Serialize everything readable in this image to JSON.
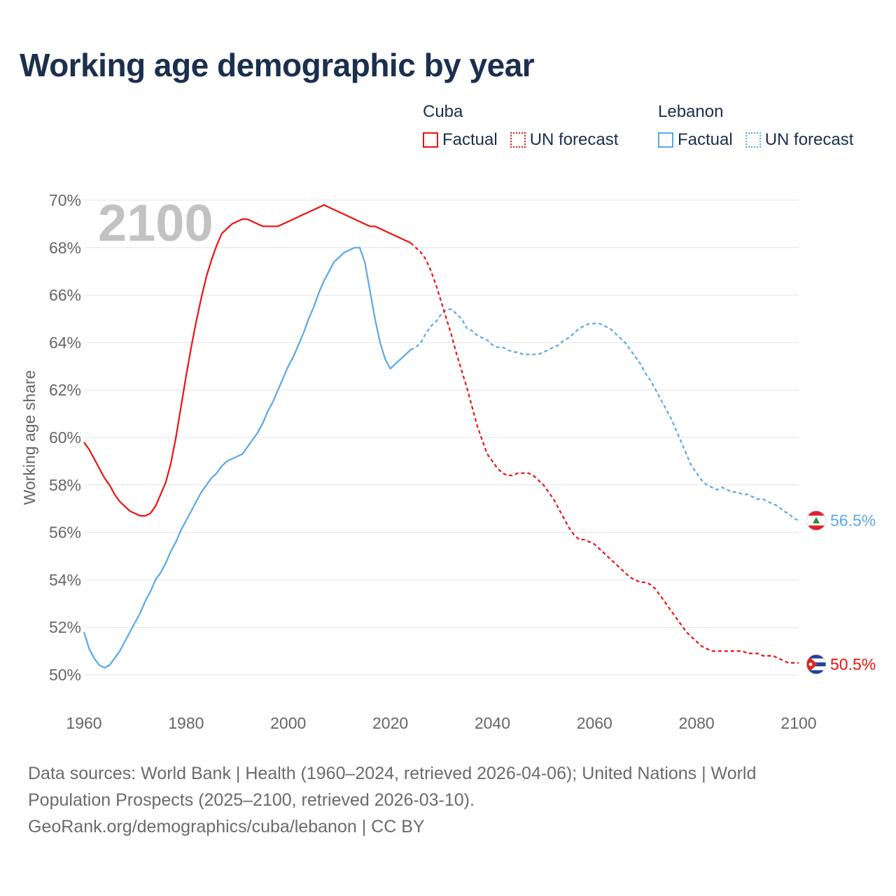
{
  "title": "Working age demographic by year",
  "legend": {
    "groups": [
      {
        "country": "Cuba",
        "color": "#ee1111",
        "factual_label": "Factual",
        "forecast_label": "UN forecast"
      },
      {
        "country": "Lebanon",
        "color": "#5ba8e6",
        "factual_label": "Factual",
        "forecast_label": "UN forecast"
      }
    ]
  },
  "source": {
    "line1": "Data sources: World Bank | Health (1960–2024, retrieved 2026-04-06); United Nations | World Population Prospects (2025–2100, retrieved 2026-03-10).",
    "line2": "GeoRank.org/demographics/cuba/lebanon | CC BY"
  },
  "chart_data": {
    "type": "line",
    "title": "Working age demographic by year",
    "ylabel": "Working age share",
    "xlabel": "",
    "year_watermark": "2100",
    "xlim": [
      1960,
      2100
    ],
    "ylim": [
      50,
      70
    ],
    "x_ticks": [
      1960,
      1980,
      2000,
      2020,
      2040,
      2060,
      2080,
      2100
    ],
    "y_ticks": [
      50,
      52,
      54,
      56,
      58,
      60,
      62,
      64,
      66,
      68,
      70
    ],
    "y_tick_suffix": "%",
    "grid": true,
    "series": [
      {
        "name": "Cuba",
        "color": "#ee1111",
        "flag": "cuba-flag-icon",
        "end_label": "50.5%",
        "factual": [
          [
            1960,
            59.8
          ],
          [
            1961,
            59.5
          ],
          [
            1962,
            59.1
          ],
          [
            1963,
            58.7
          ],
          [
            1964,
            58.3
          ],
          [
            1965,
            58.0
          ],
          [
            1966,
            57.6
          ],
          [
            1967,
            57.3
          ],
          [
            1968,
            57.1
          ],
          [
            1969,
            56.9
          ],
          [
            1970,
            56.8
          ],
          [
            1971,
            56.7
          ],
          [
            1972,
            56.7
          ],
          [
            1973,
            56.8
          ],
          [
            1974,
            57.1
          ],
          [
            1975,
            57.6
          ],
          [
            1976,
            58.1
          ],
          [
            1977,
            58.9
          ],
          [
            1978,
            60.0
          ],
          [
            1979,
            61.3
          ],
          [
            1980,
            62.6
          ],
          [
            1981,
            63.8
          ],
          [
            1982,
            64.9
          ],
          [
            1983,
            65.9
          ],
          [
            1984,
            66.8
          ],
          [
            1985,
            67.5
          ],
          [
            1986,
            68.1
          ],
          [
            1987,
            68.6
          ],
          [
            1988,
            68.8
          ],
          [
            1989,
            69.0
          ],
          [
            1990,
            69.1
          ],
          [
            1991,
            69.2
          ],
          [
            1992,
            69.2
          ],
          [
            1993,
            69.1
          ],
          [
            1994,
            69.0
          ],
          [
            1995,
            68.9
          ],
          [
            1996,
            68.9
          ],
          [
            1997,
            68.9
          ],
          [
            1998,
            68.9
          ],
          [
            1999,
            69.0
          ],
          [
            2000,
            69.1
          ],
          [
            2001,
            69.2
          ],
          [
            2002,
            69.3
          ],
          [
            2003,
            69.4
          ],
          [
            2004,
            69.5
          ],
          [
            2005,
            69.6
          ],
          [
            2006,
            69.7
          ],
          [
            2007,
            69.8
          ],
          [
            2008,
            69.7
          ],
          [
            2009,
            69.6
          ],
          [
            2010,
            69.5
          ],
          [
            2011,
            69.4
          ],
          [
            2012,
            69.3
          ],
          [
            2013,
            69.2
          ],
          [
            2014,
            69.1
          ],
          [
            2015,
            69.0
          ],
          [
            2016,
            68.9
          ],
          [
            2017,
            68.9
          ],
          [
            2018,
            68.8
          ],
          [
            2019,
            68.7
          ],
          [
            2020,
            68.6
          ],
          [
            2021,
            68.5
          ],
          [
            2022,
            68.4
          ],
          [
            2023,
            68.3
          ],
          [
            2024,
            68.2
          ]
        ],
        "forecast": [
          [
            2024,
            68.2
          ],
          [
            2025,
            68.0
          ],
          [
            2026,
            67.8
          ],
          [
            2027,
            67.5
          ],
          [
            2028,
            67.0
          ],
          [
            2029,
            66.4
          ],
          [
            2030,
            65.7
          ],
          [
            2031,
            65.0
          ],
          [
            2032,
            64.3
          ],
          [
            2033,
            63.5
          ],
          [
            2034,
            62.8
          ],
          [
            2035,
            62.1
          ],
          [
            2036,
            61.3
          ],
          [
            2037,
            60.5
          ],
          [
            2038,
            59.9
          ],
          [
            2039,
            59.3
          ],
          [
            2040,
            59.0
          ],
          [
            2041,
            58.7
          ],
          [
            2042,
            58.5
          ],
          [
            2043,
            58.4
          ],
          [
            2044,
            58.4
          ],
          [
            2045,
            58.5
          ],
          [
            2046,
            58.5
          ],
          [
            2047,
            58.5
          ],
          [
            2048,
            58.4
          ],
          [
            2049,
            58.2
          ],
          [
            2050,
            58.0
          ],
          [
            2051,
            57.7
          ],
          [
            2052,
            57.4
          ],
          [
            2053,
            57.0
          ],
          [
            2054,
            56.6
          ],
          [
            2055,
            56.2
          ],
          [
            2056,
            55.9
          ],
          [
            2057,
            55.7
          ],
          [
            2058,
            55.7
          ],
          [
            2059,
            55.6
          ],
          [
            2060,
            55.5
          ],
          [
            2061,
            55.3
          ],
          [
            2062,
            55.1
          ],
          [
            2063,
            54.9
          ],
          [
            2064,
            54.7
          ],
          [
            2065,
            54.5
          ],
          [
            2066,
            54.3
          ],
          [
            2067,
            54.1
          ],
          [
            2068,
            54.0
          ],
          [
            2069,
            53.9
          ],
          [
            2070,
            53.9
          ],
          [
            2071,
            53.8
          ],
          [
            2072,
            53.6
          ],
          [
            2073,
            53.3
          ],
          [
            2074,
            53.0
          ],
          [
            2075,
            52.7
          ],
          [
            2076,
            52.4
          ],
          [
            2077,
            52.1
          ],
          [
            2078,
            51.8
          ],
          [
            2079,
            51.6
          ],
          [
            2080,
            51.4
          ],
          [
            2081,
            51.2
          ],
          [
            2082,
            51.1
          ],
          [
            2083,
            51.0
          ],
          [
            2084,
            51.0
          ],
          [
            2085,
            51.0
          ],
          [
            2086,
            51.0
          ],
          [
            2087,
            51.0
          ],
          [
            2088,
            51.0
          ],
          [
            2089,
            51.0
          ],
          [
            2090,
            50.9
          ],
          [
            2091,
            50.9
          ],
          [
            2092,
            50.9
          ],
          [
            2093,
            50.8
          ],
          [
            2094,
            50.8
          ],
          [
            2095,
            50.8
          ],
          [
            2096,
            50.7
          ],
          [
            2097,
            50.6
          ],
          [
            2098,
            50.5
          ],
          [
            2099,
            50.5
          ],
          [
            2100,
            50.5
          ]
        ]
      },
      {
        "name": "Lebanon",
        "color": "#5ba8e6",
        "flag": "lebanon-flag-icon",
        "end_label": "56.5%",
        "factual": [
          [
            1960,
            51.8
          ],
          [
            1961,
            51.1
          ],
          [
            1962,
            50.7
          ],
          [
            1963,
            50.4
          ],
          [
            1964,
            50.3
          ],
          [
            1965,
            50.4
          ],
          [
            1966,
            50.7
          ],
          [
            1967,
            51.0
          ],
          [
            1968,
            51.4
          ],
          [
            1969,
            51.8
          ],
          [
            1970,
            52.2
          ],
          [
            1971,
            52.6
          ],
          [
            1972,
            53.1
          ],
          [
            1973,
            53.5
          ],
          [
            1974,
            54.0
          ],
          [
            1975,
            54.3
          ],
          [
            1976,
            54.7
          ],
          [
            1977,
            55.2
          ],
          [
            1978,
            55.6
          ],
          [
            1979,
            56.1
          ],
          [
            1980,
            56.5
          ],
          [
            1981,
            56.9
          ],
          [
            1982,
            57.3
          ],
          [
            1983,
            57.7
          ],
          [
            1984,
            58.0
          ],
          [
            1985,
            58.3
          ],
          [
            1986,
            58.5
          ],
          [
            1987,
            58.8
          ],
          [
            1988,
            59.0
          ],
          [
            1989,
            59.1
          ],
          [
            1990,
            59.2
          ],
          [
            1991,
            59.3
          ],
          [
            1992,
            59.6
          ],
          [
            1993,
            59.9
          ],
          [
            1994,
            60.2
          ],
          [
            1995,
            60.6
          ],
          [
            1996,
            61.1
          ],
          [
            1997,
            61.5
          ],
          [
            1998,
            62.0
          ],
          [
            1999,
            62.5
          ],
          [
            2000,
            63.0
          ],
          [
            2001,
            63.4
          ],
          [
            2002,
            63.9
          ],
          [
            2003,
            64.4
          ],
          [
            2004,
            65.0
          ],
          [
            2005,
            65.5
          ],
          [
            2006,
            66.1
          ],
          [
            2007,
            66.6
          ],
          [
            2008,
            67.0
          ],
          [
            2009,
            67.4
          ],
          [
            2010,
            67.6
          ],
          [
            2011,
            67.8
          ],
          [
            2012,
            67.9
          ],
          [
            2013,
            68.0
          ],
          [
            2014,
            68.0
          ],
          [
            2015,
            67.4
          ],
          [
            2016,
            66.2
          ],
          [
            2017,
            65.0
          ],
          [
            2018,
            64.0
          ],
          [
            2019,
            63.3
          ],
          [
            2020,
            62.9
          ],
          [
            2021,
            63.1
          ],
          [
            2022,
            63.3
          ],
          [
            2023,
            63.5
          ],
          [
            2024,
            63.7
          ]
        ],
        "forecast": [
          [
            2024,
            63.7
          ],
          [
            2025,
            63.8
          ],
          [
            2026,
            64.0
          ],
          [
            2027,
            64.4
          ],
          [
            2028,
            64.7
          ],
          [
            2029,
            64.9
          ],
          [
            2030,
            65.2
          ],
          [
            2031,
            65.4
          ],
          [
            2032,
            65.4
          ],
          [
            2033,
            65.2
          ],
          [
            2034,
            65.0
          ],
          [
            2035,
            64.6
          ],
          [
            2036,
            64.5
          ],
          [
            2037,
            64.3
          ],
          [
            2038,
            64.2
          ],
          [
            2039,
            64.1
          ],
          [
            2040,
            63.9
          ],
          [
            2041,
            63.8
          ],
          [
            2042,
            63.8
          ],
          [
            2043,
            63.7
          ],
          [
            2044,
            63.6
          ],
          [
            2045,
            63.6
          ],
          [
            2046,
            63.5
          ],
          [
            2047,
            63.5
          ],
          [
            2048,
            63.5
          ],
          [
            2049,
            63.5
          ],
          [
            2050,
            63.6
          ],
          [
            2051,
            63.7
          ],
          [
            2052,
            63.8
          ],
          [
            2053,
            63.9
          ],
          [
            2054,
            64.1
          ],
          [
            2055,
            64.2
          ],
          [
            2056,
            64.4
          ],
          [
            2057,
            64.6
          ],
          [
            2058,
            64.7
          ],
          [
            2059,
            64.8
          ],
          [
            2060,
            64.8
          ],
          [
            2061,
            64.8
          ],
          [
            2062,
            64.7
          ],
          [
            2063,
            64.6
          ],
          [
            2064,
            64.4
          ],
          [
            2065,
            64.2
          ],
          [
            2066,
            64.0
          ],
          [
            2067,
            63.7
          ],
          [
            2068,
            63.4
          ],
          [
            2069,
            63.1
          ],
          [
            2070,
            62.7
          ],
          [
            2071,
            62.4
          ],
          [
            2072,
            62.0
          ],
          [
            2073,
            61.6
          ],
          [
            2074,
            61.2
          ],
          [
            2075,
            60.8
          ],
          [
            2076,
            60.3
          ],
          [
            2077,
            59.8
          ],
          [
            2078,
            59.3
          ],
          [
            2079,
            58.8
          ],
          [
            2080,
            58.5
          ],
          [
            2081,
            58.2
          ],
          [
            2082,
            58.0
          ],
          [
            2083,
            57.9
          ],
          [
            2084,
            57.8
          ],
          [
            2085,
            57.9
          ],
          [
            2086,
            57.8
          ],
          [
            2087,
            57.7
          ],
          [
            2088,
            57.7
          ],
          [
            2089,
            57.6
          ],
          [
            2090,
            57.6
          ],
          [
            2091,
            57.5
          ],
          [
            2092,
            57.4
          ],
          [
            2093,
            57.4
          ],
          [
            2094,
            57.3
          ],
          [
            2095,
            57.2
          ],
          [
            2096,
            57.1
          ],
          [
            2097,
            56.9
          ],
          [
            2098,
            56.8
          ],
          [
            2099,
            56.6
          ],
          [
            2100,
            56.5
          ]
        ]
      }
    ]
  }
}
